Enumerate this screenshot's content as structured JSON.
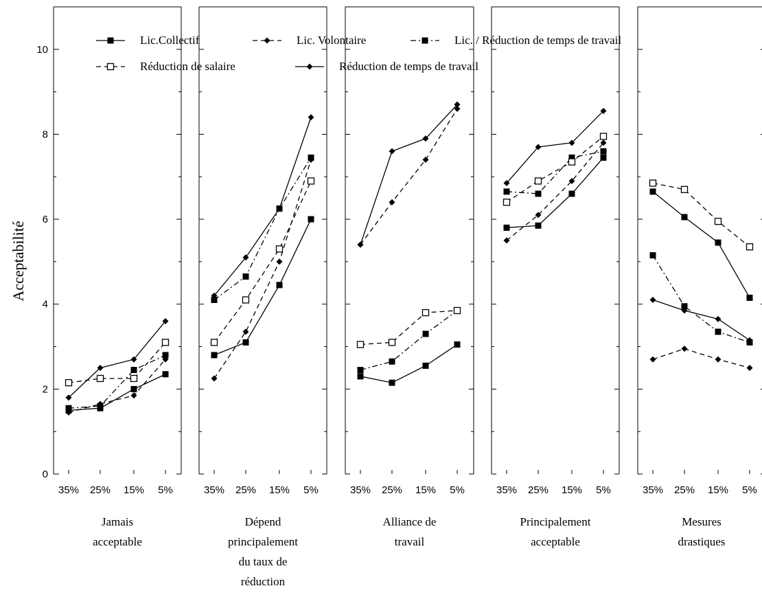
{
  "chart_data": {
    "type": "line",
    "ylabel": "Acceptabilité",
    "xlabel": "",
    "ylim": [
      0,
      11
    ],
    "yticks": [
      0,
      2,
      4,
      6,
      8,
      10
    ],
    "x": [
      "35%",
      "25%",
      "15%",
      "5%"
    ],
    "grid": false,
    "legend_position": "top",
    "panels": [
      {
        "label": [
          "Jamais",
          "acceptable"
        ],
        "series": [
          {
            "name": "Lic.Collectif",
            "values": [
              1.5,
              1.55,
              2.0,
              2.35
            ]
          },
          {
            "name": "Lic. Volontaire",
            "values": [
              1.45,
              1.65,
              1.85,
              2.7
            ]
          },
          {
            "name": "Lic. / Réduction de temps de travail",
            "values": [
              1.55,
              1.6,
              2.45,
              2.8
            ]
          },
          {
            "name": "Réduction de salaire",
            "values": [
              2.15,
              2.25,
              2.25,
              3.1
            ]
          },
          {
            "name": "Réduction de temps de travail",
            "values": [
              1.8,
              2.5,
              2.7,
              3.6
            ]
          }
        ]
      },
      {
        "label": [
          "Dépend",
          "principalement",
          "du taux de",
          "réduction"
        ],
        "series": [
          {
            "name": "Lic.Collectif",
            "values": [
              2.8,
              3.1,
              4.45,
              6.0
            ]
          },
          {
            "name": "Lic. Volontaire",
            "values": [
              2.25,
              3.35,
              5.0,
              7.4
            ]
          },
          {
            "name": "Lic. / Réduction de temps de travail",
            "values": [
              4.1,
              4.65,
              6.25,
              7.45
            ]
          },
          {
            "name": "Réduction de salaire",
            "values": [
              3.1,
              4.1,
              5.3,
              6.9
            ]
          },
          {
            "name": "Réduction de temps de travail",
            "values": [
              4.2,
              5.1,
              6.25,
              8.4
            ]
          }
        ]
      },
      {
        "label": [
          "Alliance de",
          "travail"
        ],
        "series": [
          {
            "name": "Lic.Collectif",
            "values": [
              2.3,
              2.15,
              2.55,
              3.05
            ]
          },
          {
            "name": "Lic. Volontaire",
            "values": [
              5.4,
              6.4,
              7.4,
              8.6
            ]
          },
          {
            "name": "Lic. / Réduction de temps de travail",
            "values": [
              2.45,
              2.65,
              3.3,
              3.85
            ]
          },
          {
            "name": "Réduction de salaire",
            "values": [
              3.05,
              3.1,
              3.8,
              3.85
            ]
          },
          {
            "name": "Réduction de temps de travail",
            "values": [
              5.4,
              7.6,
              7.9,
              8.7
            ]
          }
        ]
      },
      {
        "label": [
          "Principalement",
          "acceptable"
        ],
        "series": [
          {
            "name": "Lic.Collectif",
            "values": [
              5.8,
              5.85,
              6.6,
              7.45
            ]
          },
          {
            "name": "Lic. Volontaire",
            "values": [
              5.5,
              6.1,
              6.9,
              7.8
            ]
          },
          {
            "name": "Lic. / Réduction de temps de travail",
            "values": [
              6.65,
              6.6,
              7.45,
              7.6
            ]
          },
          {
            "name": "Réduction de salaire",
            "values": [
              6.4,
              6.9,
              7.35,
              7.95
            ]
          },
          {
            "name": "Réduction de temps de travail",
            "values": [
              6.85,
              7.7,
              7.8,
              8.55
            ]
          }
        ]
      },
      {
        "label": [
          "Mesures",
          "drastiques"
        ],
        "series": [
          {
            "name": "Lic.Collectif",
            "values": [
              6.65,
              6.05,
              5.45,
              4.15
            ]
          },
          {
            "name": "Lic. Volontaire",
            "values": [
              2.7,
              2.95,
              2.7,
              2.5
            ]
          },
          {
            "name": "Lic. / Réduction de temps de travail",
            "values": [
              5.15,
              3.95,
              3.35,
              3.1
            ]
          },
          {
            "name": "Réduction de salaire",
            "values": [
              6.85,
              6.7,
              5.95,
              5.35
            ]
          },
          {
            "name": "Réduction de temps de travail",
            "values": [
              4.1,
              3.85,
              3.65,
              3.15
            ]
          }
        ]
      }
    ],
    "series_styles": [
      {
        "name": "Lic.Collectif",
        "line": "solid",
        "marker": "filled-square"
      },
      {
        "name": "Lic. Volontaire",
        "line": "dashed",
        "marker": "filled-diamond"
      },
      {
        "name": "Lic. / Réduction de temps de travail",
        "line": "dash-dot",
        "marker": "filled-square"
      },
      {
        "name": "Réduction de salaire",
        "line": "dashed",
        "marker": "open-square"
      },
      {
        "name": "Réduction de temps de travail",
        "line": "solid",
        "marker": "filled-diamond"
      }
    ],
    "colors": {
      "line": "#000000",
      "background": "#ffffff"
    }
  }
}
